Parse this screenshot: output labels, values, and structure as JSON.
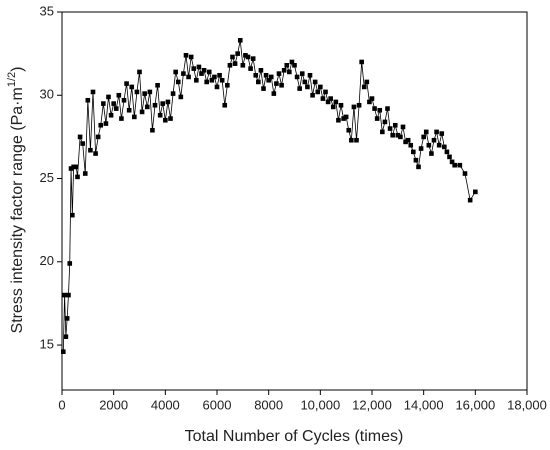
{
  "chart_data": {
    "type": "line",
    "x_label": "Total Number of Cycles (times)",
    "y_label": "Stress intensity factor range (Pa·m",
    "y_label_sup": "1/2",
    "y_label_end": ")",
    "xlim": [
      0,
      18000
    ],
    "xticks": [
      0,
      2000,
      4000,
      6000,
      8000,
      {
        "value": 10000,
        "label": "10,000"
      },
      {
        "value": 12000,
        "label": "12,000"
      },
      {
        "value": 14000,
        "label": "14,000"
      },
      {
        "value": 16000,
        "label": "16,000"
      },
      {
        "value": 18000,
        "label": "18,000"
      }
    ],
    "ylim": [
      12.3,
      35
    ],
    "yticks": [
      15,
      20,
      25,
      30,
      35
    ],
    "color": "#000000",
    "x": [
      50,
      100,
      150,
      200,
      250,
      300,
      350,
      400,
      450,
      550,
      600,
      700,
      800,
      900,
      1000,
      1100,
      1200,
      1300,
      1400,
      1500,
      1600,
      1700,
      1800,
      1900,
      2000,
      2100,
      2200,
      2300,
      2400,
      2500,
      2600,
      2700,
      2800,
      2900,
      3000,
      3100,
      3200,
      3300,
      3400,
      3500,
      3600,
      3700,
      3800,
      3900,
      4000,
      4100,
      4200,
      4300,
      4400,
      4500,
      4600,
      4700,
      4800,
      4900,
      5000,
      5100,
      5200,
      5300,
      5400,
      5500,
      5600,
      5700,
      5800,
      5900,
      6000,
      6100,
      6200,
      6300,
      6400,
      6500,
      6600,
      6700,
      6800,
      6900,
      7000,
      7100,
      7200,
      7300,
      7400,
      7500,
      7600,
      7700,
      7800,
      7900,
      8000,
      8100,
      8200,
      8300,
      8400,
      8500,
      8600,
      8700,
      8800,
      8900,
      9000,
      9100,
      9200,
      9300,
      9400,
      9500,
      9600,
      9700,
      9800,
      9900,
      10000,
      10100,
      10200,
      10300,
      10400,
      10500,
      10600,
      10700,
      10800,
      10900,
      11000,
      11100,
      11200,
      11300,
      11400,
      11500,
      11600,
      11700,
      11800,
      11900,
      12000,
      12100,
      12200,
      12300,
      12400,
      12500,
      12600,
      12700,
      12800,
      12900,
      13000,
      13100,
      13200,
      13300,
      13400,
      13500,
      13600,
      13700,
      13800,
      13900,
      14000,
      14100,
      14200,
      14300,
      14400,
      14500,
      14600,
      14700,
      14800,
      14900,
      15000,
      15100,
      15200,
      15400,
      15600,
      15800,
      16000
    ],
    "values": [
      14.6,
      18,
      15.5,
      16.6,
      18,
      19.9,
      25.6,
      22.8,
      25.7,
      25.7,
      25.1,
      27.5,
      27.1,
      25.3,
      29.7,
      26.7,
      30.2,
      26.5,
      27.5,
      28.2,
      29.5,
      28.3,
      29.9,
      28.8,
      29.5,
      29.2,
      30,
      28.6,
      29.7,
      30.7,
      29.1,
      30.5,
      28.7,
      30.2,
      31.4,
      29,
      30.1,
      29.3,
      30.2,
      27.9,
      29.4,
      30.6,
      28.8,
      29.5,
      28.5,
      29.6,
      28.6,
      30.1,
      31.4,
      30.8,
      29.9,
      31.3,
      32.4,
      31.1,
      32.3,
      31.6,
      30.9,
      31.7,
      31.3,
      31.5,
      30.8,
      31.4,
      30.9,
      31.1,
      30.5,
      31.2,
      30.9,
      29.4,
      30.6,
      31.8,
      32.3,
      31.9,
      32.5,
      33.3,
      31.8,
      32.4,
      32.3,
      31.6,
      32.2,
      31.2,
      30.8,
      31.5,
      30.4,
      31.2,
      30.9,
      31.1,
      30.1,
      30.7,
      31.3,
      30.6,
      31.5,
      31.8,
      31.4,
      32,
      31.8,
      31.1,
      30.4,
      31.3,
      30.8,
      30.5,
      31.2,
      30,
      30.8,
      30.2,
      30.5,
      29.8,
      30.2,
      29.6,
      29.8,
      29.3,
      29.6,
      28.5,
      29.4,
      28.6,
      28.7,
      27.9,
      27.3,
      29.3,
      27.3,
      29.4,
      32,
      30.5,
      30.8,
      29.6,
      29.8,
      29.2,
      28.6,
      29.1,
      27.8,
      28.4,
      29.2,
      28,
      27.6,
      28.2,
      27.6,
      27.5,
      28.1,
      27.2,
      27.3,
      27,
      26.6,
      26.1,
      25.7,
      26.8,
      27.5,
      27.8,
      27,
      26.5,
      27.3,
      27.8,
      27,
      27.7,
      26.9,
      26.6,
      26.3,
      26,
      25.8,
      25.8,
      25.3,
      23.7,
      24.2
    ]
  }
}
